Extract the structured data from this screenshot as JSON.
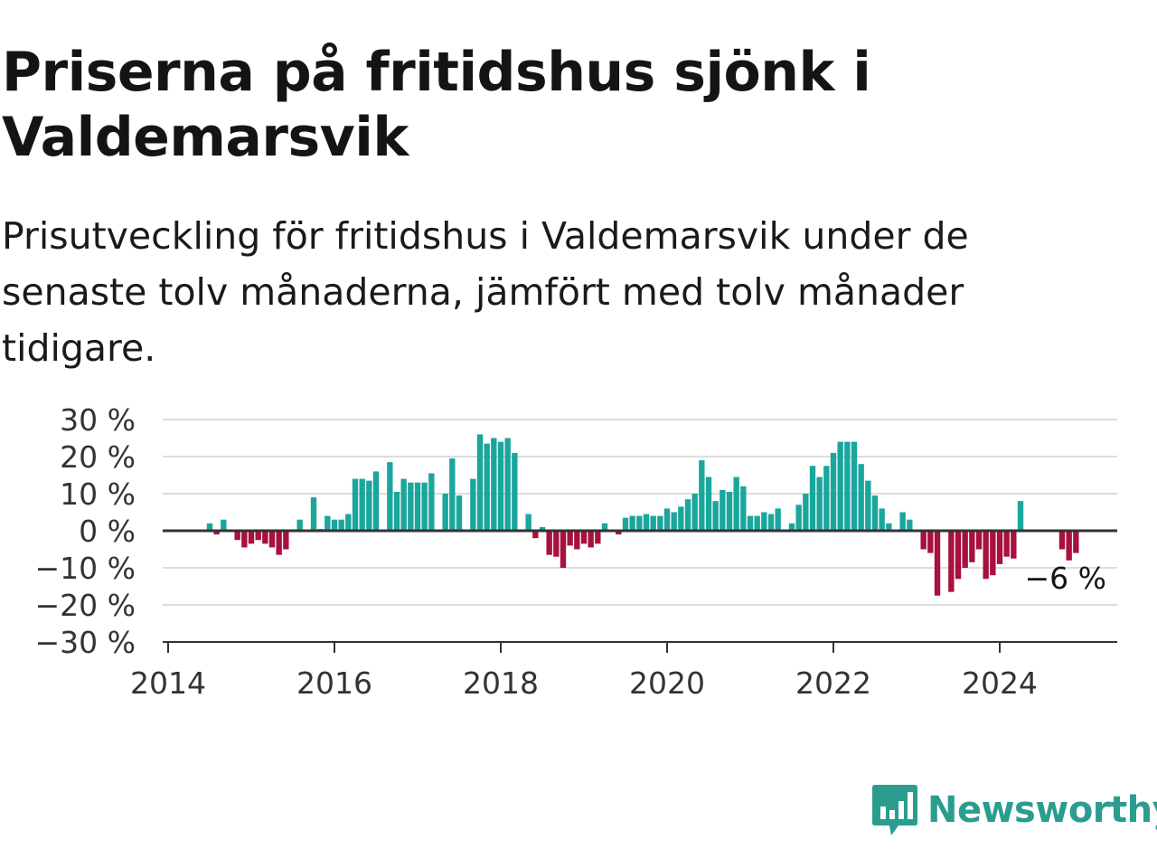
{
  "header": {
    "title": "Priserna på fritidshus sjönk i Valdemarsvik",
    "subtitle": "Prisutveckling för fritidshus i Valdemarsvik under de senaste tolv månaderna, jämfört med tolv månader tidigare."
  },
  "brand": {
    "name": "Newsworthy",
    "color": "#2a9d8f",
    "logo_icon": "bar-chart-speech-bubble-icon"
  },
  "colors": {
    "positive": "#1aa69c",
    "negative": "#a8103e",
    "grid": "#dddddd",
    "axis": "#333333"
  },
  "chart_data": {
    "type": "bar",
    "title": "",
    "xlabel": "",
    "ylabel": "",
    "ylim": [
      -30,
      30
    ],
    "yticks": [
      30,
      20,
      10,
      0,
      -10,
      -20,
      -30
    ],
    "ytick_labels": [
      "30 %",
      "20 %",
      "10 %",
      "0 %",
      "−10 %",
      "−20 %",
      "−30 %"
    ],
    "xticks": [
      "2014",
      "2016",
      "2018",
      "2020",
      "2022",
      "2024"
    ],
    "grid": true,
    "last_value_label": "−6 %",
    "start": "2014-01",
    "x": [
      "2014-01",
      "2014-02",
      "2014-03",
      "2014-04",
      "2014-05",
      "2014-06",
      "2014-07",
      "2014-08",
      "2014-09",
      "2014-10",
      "2014-11",
      "2014-12",
      "2015-01",
      "2015-02",
      "2015-03",
      "2015-04",
      "2015-05",
      "2015-06",
      "2015-07",
      "2015-08",
      "2015-09",
      "2015-10",
      "2015-11",
      "2015-12",
      "2016-01",
      "2016-02",
      "2016-03",
      "2016-04",
      "2016-05",
      "2016-06",
      "2016-07",
      "2016-08",
      "2016-09",
      "2016-10",
      "2016-11",
      "2016-12",
      "2017-01",
      "2017-02",
      "2017-03",
      "2017-04",
      "2017-05",
      "2017-06",
      "2017-07",
      "2017-08",
      "2017-09",
      "2017-10",
      "2017-11",
      "2017-12",
      "2018-01",
      "2018-02",
      "2018-03",
      "2018-04",
      "2018-05",
      "2018-06",
      "2018-07",
      "2018-08",
      "2018-09",
      "2018-10",
      "2018-11",
      "2018-12",
      "2019-01",
      "2019-02",
      "2019-03",
      "2019-04",
      "2019-05",
      "2019-06",
      "2019-07",
      "2019-08",
      "2019-09",
      "2019-10",
      "2019-11",
      "2019-12",
      "2020-01",
      "2020-02",
      "2020-03",
      "2020-04",
      "2020-05",
      "2020-06",
      "2020-07",
      "2020-08",
      "2020-09",
      "2020-10",
      "2020-11",
      "2020-12",
      "2021-01",
      "2021-02",
      "2021-03",
      "2021-04",
      "2021-05",
      "2021-06",
      "2021-07",
      "2021-08",
      "2021-09",
      "2021-10",
      "2021-11",
      "2021-12",
      "2022-01",
      "2022-02",
      "2022-03",
      "2022-04",
      "2022-05",
      "2022-06",
      "2022-07",
      "2022-08",
      "2022-09",
      "2022-10",
      "2022-11",
      "2022-12",
      "2023-01",
      "2023-02",
      "2023-03",
      "2023-04",
      "2023-05",
      "2023-06",
      "2023-07",
      "2023-08",
      "2023-09",
      "2023-10",
      "2023-11",
      "2023-12",
      "2024-01",
      "2024-02",
      "2024-03",
      "2024-04",
      "2024-05",
      "2024-06",
      "2024-07",
      "2024-08",
      "2024-09",
      "2024-10",
      "2024-11",
      "2024-12"
    ],
    "values": [
      null,
      null,
      null,
      null,
      null,
      null,
      2,
      -1,
      3,
      null,
      -2.5,
      -4.5,
      -3.5,
      -2.5,
      -3.5,
      -4.5,
      -6.5,
      -5,
      null,
      3,
      null,
      9,
      0.5,
      4,
      3,
      3,
      4.5,
      14,
      14,
      13.5,
      16,
      null,
      18.5,
      10.5,
      14,
      13,
      13,
      13,
      15.5,
      null,
      10,
      19.5,
      9.5,
      null,
      14,
      26,
      23.5,
      25,
      24,
      25,
      21,
      null,
      4.5,
      -2,
      1,
      -6.5,
      -7,
      -10,
      -4,
      -5,
      -3.5,
      -4.5,
      -3.5,
      2,
      null,
      -1,
      3.5,
      4,
      4,
      4.5,
      4,
      4,
      6,
      5,
      6.5,
      8.5,
      10,
      19,
      14.5,
      8,
      11,
      10.5,
      14.5,
      12,
      4,
      4,
      5,
      4.5,
      6,
      null,
      2,
      7,
      10,
      17.5,
      14.5,
      17.5,
      21,
      24,
      24,
      24,
      18,
      13.5,
      9.5,
      6,
      2,
      null,
      5,
      3,
      null,
      -5,
      -6,
      -17.5,
      null,
      -16.5,
      -13,
      -10,
      -8.5,
      -5,
      -13,
      -12,
      -9,
      -7,
      -7.5,
      8,
      null,
      null,
      null,
      null,
      null,
      -5,
      -8,
      -6
    ]
  }
}
